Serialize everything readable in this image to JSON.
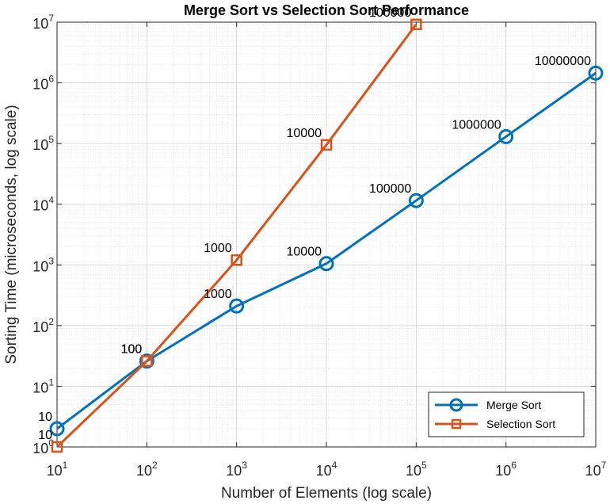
{
  "chart_data": {
    "type": "line",
    "title": "Merge Sort vs Selection Sort Performance",
    "xlabel": "Number of Elements (log scale)",
    "ylabel": "Sorting Time (microseconds, log scale)",
    "x_scale": "log",
    "y_scale": "log",
    "xlim": [
      10,
      10000000
    ],
    "ylim": [
      1,
      10000000
    ],
    "x_ticks": [
      {
        "base": "10",
        "exp": "1",
        "value": 10
      },
      {
        "base": "10",
        "exp": "2",
        "value": 100
      },
      {
        "base": "10",
        "exp": "3",
        "value": 1000
      },
      {
        "base": "10",
        "exp": "4",
        "value": 10000
      },
      {
        "base": "10",
        "exp": "5",
        "value": 100000
      },
      {
        "base": "10",
        "exp": "6",
        "value": 1000000
      },
      {
        "base": "10",
        "exp": "7",
        "value": 10000000
      }
    ],
    "y_ticks": [
      {
        "base": "10",
        "exp": "0",
        "value": 1
      },
      {
        "base": "10",
        "exp": "1",
        "value": 10
      },
      {
        "base": "10",
        "exp": "2",
        "value": 100
      },
      {
        "base": "10",
        "exp": "3",
        "value": 1000
      },
      {
        "base": "10",
        "exp": "4",
        "value": 10000
      },
      {
        "base": "10",
        "exp": "5",
        "value": 100000
      },
      {
        "base": "10",
        "exp": "6",
        "value": 1000000
      },
      {
        "base": "10",
        "exp": "7",
        "value": 10000000
      }
    ],
    "grid": true,
    "minor_grid": true,
    "legend_position": "bottom-right",
    "series": [
      {
        "name": "Merge Sort",
        "color": "#0072BD",
        "marker": "circle",
        "x": [
          10,
          100,
          1000,
          10000,
          100000,
          1000000,
          10000000
        ],
        "y": [
          2,
          26,
          210,
          1050,
          11500,
          130000,
          1450000
        ],
        "point_labels": [
          "10",
          "100",
          "1000",
          "10000",
          "100000",
          "1000000",
          "10000000"
        ]
      },
      {
        "name": "Selection Sort",
        "color": "#D95319",
        "marker": "square",
        "x": [
          10,
          100,
          1000,
          10000,
          100000
        ],
        "y": [
          1,
          26,
          1200,
          95000,
          9200000
        ],
        "point_labels": [
          "10",
          "100",
          "1000",
          "10000",
          "100000"
        ]
      }
    ]
  }
}
